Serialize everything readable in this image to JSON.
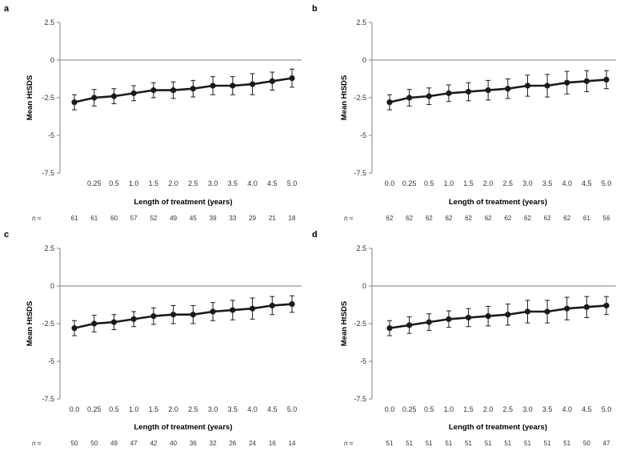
{
  "chart_data": [
    {
      "panel": "a",
      "type": "line",
      "x": [
        "",
        "0.25",
        "0.5",
        "1.0",
        "1.5",
        "2.0",
        "2.5",
        "3.0",
        "3.5",
        "4.0",
        "4.5",
        "5.0"
      ],
      "values": [
        -2.8,
        -2.5,
        -2.4,
        -2.2,
        -2.0,
        -2.0,
        -1.9,
        -1.7,
        -1.7,
        -1.6,
        -1.4,
        -1.2
      ],
      "error": [
        0.5,
        0.55,
        0.5,
        0.5,
        0.5,
        0.55,
        0.55,
        0.6,
        0.6,
        0.7,
        0.6,
        0.6
      ],
      "n_label": "n =",
      "n": [
        "61",
        "61",
        "60",
        "57",
        "52",
        "49",
        "45",
        "39",
        "33",
        "29",
        "21",
        "18"
      ],
      "ylabel": "Mean HtSDS",
      "xlabel": "Length of treatment (years)",
      "ylim": [
        -7.5,
        2.5
      ],
      "yticks": [
        "2.5",
        "0",
        "-2.5",
        "-5",
        "-7.5"
      ]
    },
    {
      "panel": "b",
      "type": "line",
      "x": [
        "0.0",
        "0.25",
        "0.5",
        "1.0",
        "1.5",
        "2.0",
        "2.5",
        "3.0",
        "3.5",
        "4.0",
        "4.5",
        "5.0"
      ],
      "values": [
        -2.8,
        -2.5,
        -2.4,
        -2.2,
        -2.1,
        -2.0,
        -1.9,
        -1.7,
        -1.7,
        -1.5,
        -1.4,
        -1.3
      ],
      "error": [
        0.5,
        0.55,
        0.55,
        0.55,
        0.6,
        0.65,
        0.65,
        0.7,
        0.75,
        0.75,
        0.7,
        0.6
      ],
      "n_label": "n =",
      "n": [
        "62",
        "62",
        "62",
        "62",
        "62",
        "62",
        "62",
        "62",
        "62",
        "62",
        "61",
        "56"
      ],
      "ylabel": "Mean HtSDS",
      "xlabel": "Length of treatment (years)",
      "ylim": [
        -7.5,
        2.5
      ],
      "yticks": [
        "2.5",
        "0",
        "-2.5",
        "-5",
        "-7.5"
      ]
    },
    {
      "panel": "c",
      "type": "line",
      "x": [
        "0.0",
        "0.25",
        "0.5",
        "1.0",
        "1.5",
        "2.0",
        "2.5",
        "3.0",
        "3.5",
        "4.0",
        "4.5",
        "5.0"
      ],
      "values": [
        -2.8,
        -2.5,
        -2.4,
        -2.2,
        -2.0,
        -1.9,
        -1.9,
        -1.7,
        -1.6,
        -1.5,
        -1.3,
        -1.2
      ],
      "error": [
        0.5,
        0.55,
        0.5,
        0.5,
        0.55,
        0.6,
        0.6,
        0.6,
        0.65,
        0.7,
        0.6,
        0.55
      ],
      "n_label": "n =",
      "n": [
        "50",
        "50",
        "49",
        "47",
        "42",
        "40",
        "36",
        "32",
        "26",
        "24",
        "16",
        "14"
      ],
      "ylabel": "Mean HtSDS",
      "xlabel": "Length of treatment (years)",
      "ylim": [
        -7.5,
        2.5
      ],
      "yticks": [
        "2.5",
        "0",
        "-2.5",
        "-5",
        "-7.5"
      ]
    },
    {
      "panel": "d",
      "type": "line",
      "x": [
        "0.0",
        "0.25",
        "0.5",
        "1.0",
        "1.5",
        "2.0",
        "2.5",
        "3.0",
        "3.5",
        "4.0",
        "4.5",
        "5.0"
      ],
      "values": [
        -2.8,
        -2.6,
        -2.4,
        -2.2,
        -2.1,
        -2.0,
        -1.9,
        -1.7,
        -1.7,
        -1.5,
        -1.4,
        -1.3
      ],
      "error": [
        0.5,
        0.55,
        0.55,
        0.55,
        0.6,
        0.65,
        0.7,
        0.75,
        0.75,
        0.75,
        0.7,
        0.6
      ],
      "n_label": "n =",
      "n": [
        "51",
        "51",
        "51",
        "51",
        "51",
        "51",
        "51",
        "51",
        "51",
        "51",
        "50",
        "47"
      ],
      "ylabel": "Mean HtSDS",
      "xlabel": "Length of treatment (years)",
      "ylim": [
        -7.5,
        2.5
      ],
      "yticks": [
        "2.5",
        "0",
        "-2.5",
        "-5",
        "-7.5"
      ]
    }
  ]
}
